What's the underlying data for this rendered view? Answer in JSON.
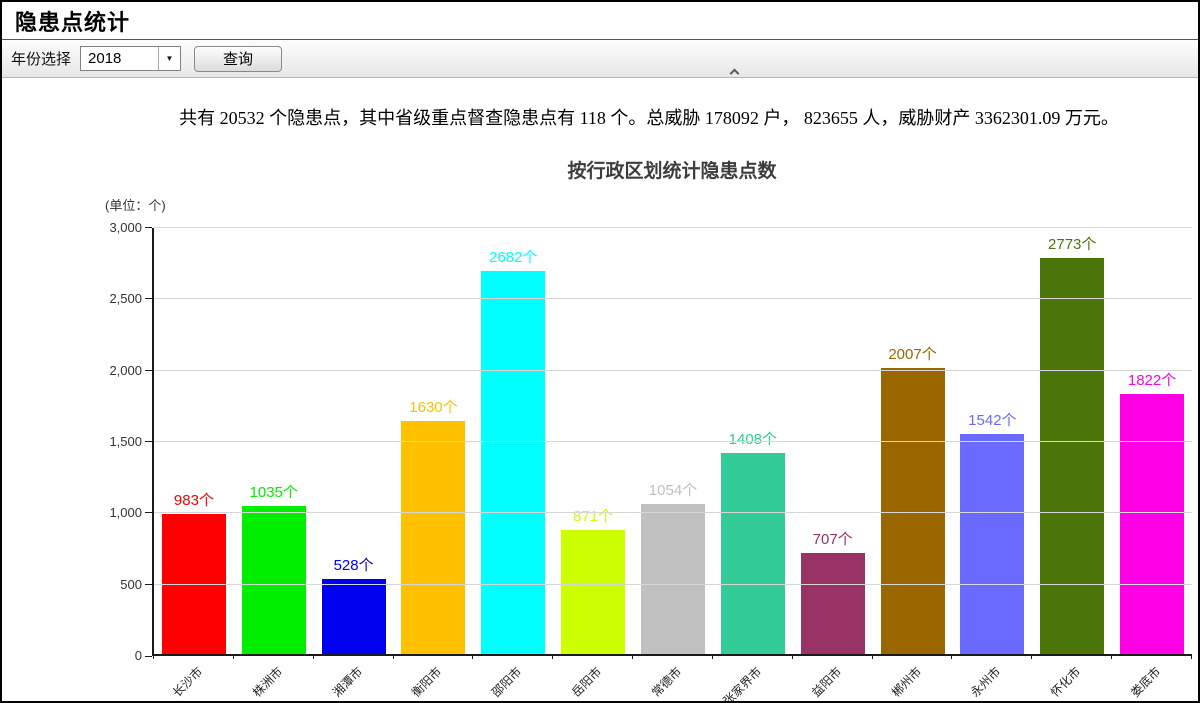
{
  "header": {
    "title": "隐患点统计"
  },
  "toolbar": {
    "year_label": "年份选择",
    "year_value": "2018",
    "dropdown_icon": "▼",
    "query_label": "查询"
  },
  "summary": {
    "text": "共有  20532  个隐患点，其中省级重点督查隐患点有  118  个。总威胁  178092  户，  823655  人，威胁财产  3362301.09  万元。"
  },
  "chart_data": {
    "type": "bar",
    "title": "按行政区划统计隐患点数",
    "unit_label": "(单位：个)",
    "categories": [
      "长沙市",
      "株洲市",
      "湘潭市",
      "衡阳市",
      "邵阳市",
      "岳阳市",
      "常德市",
      "张家界市",
      "益阳市",
      "郴州市",
      "永州市",
      "怀化市",
      "娄底市"
    ],
    "values": [
      983,
      1035,
      528,
      1630,
      2682,
      871,
      1054,
      1408,
      707,
      2007,
      1542,
      2773,
      1822
    ],
    "colors": [
      "#ff0000",
      "#00ee00",
      "#0000ee",
      "#ffc000",
      "#00ffff",
      "#ccff00",
      "#c0c0c0",
      "#33cc99",
      "#993366",
      "#996600",
      "#6a6aff",
      "#4b7508",
      "#ff00e6"
    ],
    "value_suffix": "个",
    "xlabel": "",
    "ylabel": "",
    "ylim": [
      0,
      3000
    ],
    "y_ticks": [
      {
        "value": 0,
        "label": "0"
      },
      {
        "value": 500,
        "label": "500"
      },
      {
        "value": 1000,
        "label": "1,000"
      },
      {
        "value": 1500,
        "label": "1,500"
      },
      {
        "value": 2000,
        "label": "2,000"
      },
      {
        "value": 2500,
        "label": "2,500"
      },
      {
        "value": 3000,
        "label": "3,000"
      }
    ],
    "grid": true,
    "legend": false,
    "x_label_rotation": 45
  }
}
